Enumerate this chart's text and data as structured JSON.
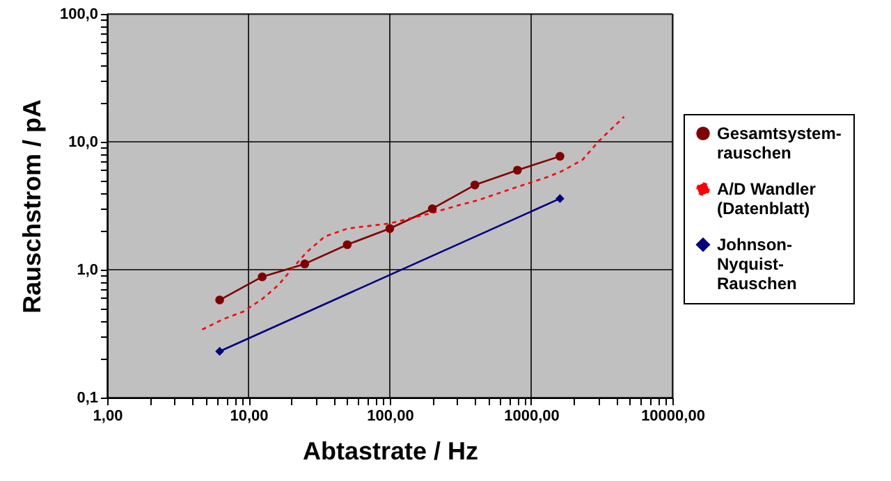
{
  "chart_data": {
    "type": "line",
    "xlabel": "Abtastrate / Hz",
    "ylabel": "Rauschstrom / pA",
    "log": "xy",
    "grid": true,
    "legend": "right",
    "xlim": [
      1,
      10000
    ],
    "ylim": [
      0.1,
      100
    ],
    "xticks": [
      {
        "value": 1,
        "label": "1,00"
      },
      {
        "value": 2,
        "label": null
      },
      {
        "value": 3,
        "label": null
      },
      {
        "value": 4,
        "label": null
      },
      {
        "value": 5,
        "label": null
      },
      {
        "value": 6,
        "label": null
      },
      {
        "value": 7,
        "label": null
      },
      {
        "value": 8,
        "label": null
      },
      {
        "value": 9,
        "label": null
      },
      {
        "value": 10,
        "label": "10,00"
      },
      {
        "value": 20,
        "label": null
      },
      {
        "value": 30,
        "label": null
      },
      {
        "value": 40,
        "label": null
      },
      {
        "value": 50,
        "label": null
      },
      {
        "value": 60,
        "label": null
      },
      {
        "value": 70,
        "label": null
      },
      {
        "value": 80,
        "label": null
      },
      {
        "value": 90,
        "label": null
      },
      {
        "value": 100,
        "label": "100,00"
      },
      {
        "value": 200,
        "label": null
      },
      {
        "value": 300,
        "label": null
      },
      {
        "value": 400,
        "label": null
      },
      {
        "value": 500,
        "label": null
      },
      {
        "value": 600,
        "label": null
      },
      {
        "value": 700,
        "label": null
      },
      {
        "value": 800,
        "label": null
      },
      {
        "value": 900,
        "label": null
      },
      {
        "value": 1000,
        "label": "1000,00"
      },
      {
        "value": 2000,
        "label": null
      },
      {
        "value": 3000,
        "label": null
      },
      {
        "value": 4000,
        "label": null
      },
      {
        "value": 5000,
        "label": null
      },
      {
        "value": 6000,
        "label": null
      },
      {
        "value": 7000,
        "label": null
      },
      {
        "value": 8000,
        "label": null
      },
      {
        "value": 9000,
        "label": null
      },
      {
        "value": 10000,
        "label": "10000,00"
      }
    ],
    "yticks": [
      {
        "value": 0.1,
        "label": "0,1"
      },
      {
        "value": 0.2,
        "label": null
      },
      {
        "value": 0.3,
        "label": null
      },
      {
        "value": 0.4,
        "label": null
      },
      {
        "value": 0.5,
        "label": null
      },
      {
        "value": 0.6,
        "label": null
      },
      {
        "value": 0.7,
        "label": null
      },
      {
        "value": 0.8,
        "label": null
      },
      {
        "value": 0.9,
        "label": null
      },
      {
        "value": 1,
        "label": "1,0"
      },
      {
        "value": 2,
        "label": null
      },
      {
        "value": 3,
        "label": null
      },
      {
        "value": 4,
        "label": null
      },
      {
        "value": 5,
        "label": null
      },
      {
        "value": 6,
        "label": null
      },
      {
        "value": 7,
        "label": null
      },
      {
        "value": 8,
        "label": null
      },
      {
        "value": 9,
        "label": null
      },
      {
        "value": 10,
        "label": "10,0"
      },
      {
        "value": 20,
        "label": null
      },
      {
        "value": 30,
        "label": null
      },
      {
        "value": 40,
        "label": null
      },
      {
        "value": 50,
        "label": null
      },
      {
        "value": 60,
        "label": null
      },
      {
        "value": 70,
        "label": null
      },
      {
        "value": 80,
        "label": null
      },
      {
        "value": 90,
        "label": null
      },
      {
        "value": 100,
        "label": "100,0"
      }
    ],
    "series": [
      {
        "name": "Gesamtsystem-rauschen",
        "color": "#800000",
        "marker": "circle",
        "x": [
          6.25,
          12.5,
          25,
          50,
          100,
          200,
          400,
          800,
          1600
        ],
        "values": [
          0.58,
          0.88,
          1.11,
          1.57,
          2.1,
          3.0,
          4.6,
          6.0,
          7.7
        ]
      },
      {
        "name": "A/D Wandler (Datenblatt)",
        "color": "#ff0000",
        "line_style": "dashed",
        "x": [
          4.7,
          6.6,
          9.2,
          12.5,
          16.3,
          20.4,
          25.6,
          34.7,
          50.6,
          74,
          100,
          135,
          198,
          288,
          421,
          614,
          897,
          1309,
          1641,
          2305,
          3006,
          4550
        ],
        "values": [
          0.34,
          0.41,
          0.47,
          0.59,
          0.76,
          1.02,
          1.36,
          1.82,
          2.1,
          2.21,
          2.3,
          2.5,
          2.77,
          3.13,
          3.49,
          4.03,
          4.63,
          5.31,
          5.87,
          7.22,
          10.1,
          15.7
        ]
      },
      {
        "name": "Johnson-Nyquist-Rauschen",
        "color": "#000080",
        "marker": "diamond",
        "x": [
          6.25,
          1600
        ],
        "values": [
          0.23,
          3.6
        ]
      }
    ]
  }
}
